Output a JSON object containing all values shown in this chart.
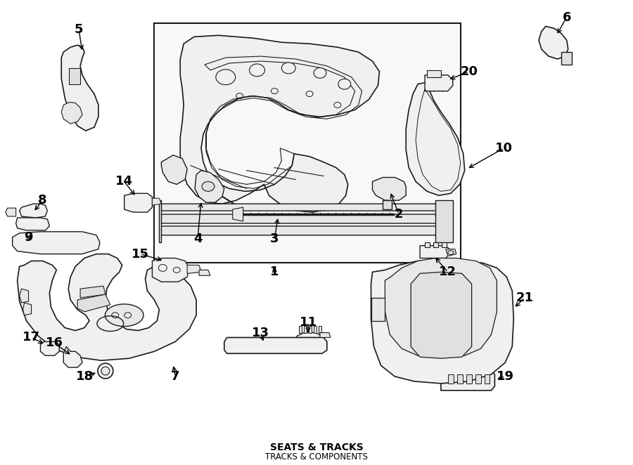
{
  "background_color": "#ffffff",
  "line_color": "#1a1a1a",
  "box_color": "#f2f2f2",
  "title": "SEATS & TRACKS",
  "subtitle": "TRACKS & COMPONENTS",
  "lw": 1.0
}
